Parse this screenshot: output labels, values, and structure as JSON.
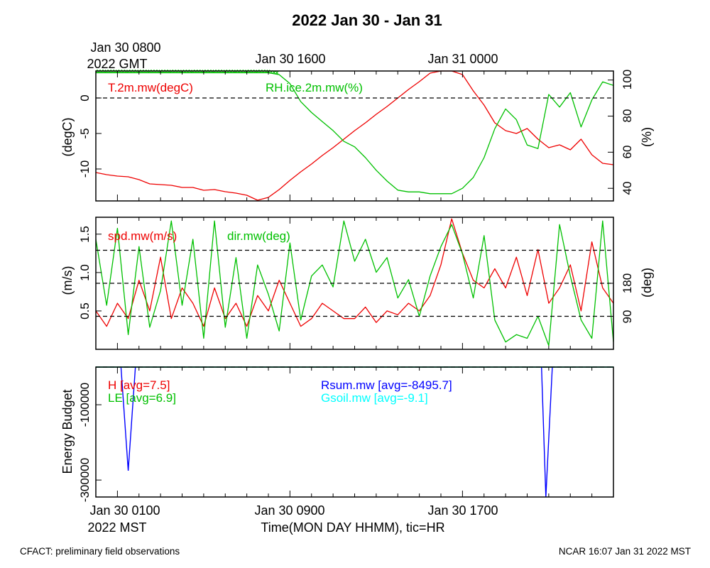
{
  "title": "2022 Jan 30 - Jan 31",
  "axes": {
    "top": [
      {
        "line1": "Jan 30 0800",
        "line2": "2022 GMT"
      },
      {
        "line1": "Jan 30 1600"
      },
      {
        "line1": "Jan 31 0000"
      }
    ],
    "bottom": [
      {
        "line1": "Jan 30 0100",
        "line2": "2022 MST"
      },
      {
        "line1": "Jan 30 0900"
      },
      {
        "line1": "Jan 30 1700"
      }
    ],
    "xlabel": "Time(MON DAY HHMM), tic=HR"
  },
  "footer": {
    "left": "CFACT: preliminary field observations",
    "right": "NCAR 16:07 Jan 31 2022 MST"
  },
  "colors": {
    "red": "#ee0000",
    "green": "#00c000",
    "blue": "#0000ff",
    "cyan": "#00ffff"
  },
  "chart_data": [
    {
      "type": "line",
      "xlim": [
        "Jan 30 0000",
        "Jan 31 0000"
      ],
      "x": [
        "Jan 30 0000",
        "Jan 30 0030",
        "Jan 30 0100",
        "Jan 30 0130",
        "Jan 30 0200",
        "Jan 30 0230",
        "Jan 30 0300",
        "Jan 30 0330",
        "Jan 30 0400",
        "Jan 30 0430",
        "Jan 30 0500",
        "Jan 30 0530",
        "Jan 30 0600",
        "Jan 30 0630",
        "Jan 30 0700",
        "Jan 30 0730",
        "Jan 30 0800",
        "Jan 30 0830",
        "Jan 30 0900",
        "Jan 30 0930",
        "Jan 30 1000",
        "Jan 30 1030",
        "Jan 30 1100",
        "Jan 30 1130",
        "Jan 30 1200",
        "Jan 30 1230",
        "Jan 30 1300",
        "Jan 30 1330",
        "Jan 30 1400",
        "Jan 30 1430",
        "Jan 30 1500",
        "Jan 30 1530",
        "Jan 30 1600",
        "Jan 30 1630",
        "Jan 30 1700",
        "Jan 30 1730",
        "Jan 30 1800",
        "Jan 30 1830",
        "Jan 30 1900",
        "Jan 30 1930",
        "Jan 30 2000",
        "Jan 30 2030",
        "Jan 30 2100",
        "Jan 30 2130",
        "Jan 30 2200",
        "Jan 30 2230",
        "Jan 30 2300",
        "Jan 30 2330",
        "Jan 31 0000"
      ],
      "ylabel": "(degC)",
      "ylabel_right": "(%)",
      "ylim": [
        -14.5,
        3.8
      ],
      "ylim_right": [
        33,
        105
      ],
      "yticks": [
        {
          "value": 0,
          "label": "0"
        },
        {
          "value": -5,
          "label": "-5"
        },
        {
          "value": -10,
          "label": "-10"
        }
      ],
      "yticks_right": [
        {
          "value": 100,
          "label": "100"
        },
        {
          "value": 80,
          "label": "80"
        },
        {
          "value": 60,
          "label": "60"
        },
        {
          "value": 40,
          "label": "40"
        }
      ],
      "reference_lines": [
        {
          "axis": "left",
          "value": 0
        }
      ],
      "series": [
        {
          "name": "T.2m.mw(degC)",
          "axis": "left",
          "color": "#ee0000",
          "values": [
            -10.5,
            -10.8,
            -11.0,
            -11.1,
            -11.5,
            -12.1,
            -12.2,
            -12.3,
            -12.6,
            -12.6,
            -13.0,
            -12.9,
            -13.2,
            -13.4,
            -13.7,
            -14.4,
            -14.0,
            -12.9,
            -11.6,
            -10.4,
            -9.3,
            -8.1,
            -7.0,
            -5.8,
            -4.6,
            -3.5,
            -2.3,
            -1.2,
            0.0,
            1.2,
            2.3,
            3.5,
            3.8,
            3.8,
            3.3,
            1.0,
            -1.0,
            -3.5,
            -4.6,
            -5.0,
            -4.3,
            -5.8,
            -7.0,
            -6.6,
            -7.3,
            -5.8,
            -8.0,
            -9.2,
            -9.4
          ]
        },
        {
          "name": "RH.ice.2m.mw(%)",
          "axis": "right",
          "color": "#00c000",
          "values": [
            104,
            104,
            104,
            104,
            104,
            104,
            104,
            104,
            104,
            104,
            104,
            104,
            104,
            104,
            104,
            104,
            104,
            103,
            98,
            88,
            82,
            77,
            72,
            66,
            63,
            57,
            50,
            44,
            39,
            38,
            38,
            37,
            37,
            37,
            40,
            46,
            57,
            73,
            84,
            78,
            64,
            62,
            92,
            85,
            93,
            74,
            89,
            99,
            97
          ]
        }
      ]
    },
    {
      "type": "line",
      "xlim": [
        "Jan 30 0000",
        "Jan 31 0000"
      ],
      "x": [
        "Jan 30 0000",
        "Jan 30 0030",
        "Jan 30 0100",
        "Jan 30 0130",
        "Jan 30 0200",
        "Jan 30 0230",
        "Jan 30 0300",
        "Jan 30 0330",
        "Jan 30 0400",
        "Jan 30 0430",
        "Jan 30 0500",
        "Jan 30 0530",
        "Jan 30 0600",
        "Jan 30 0630",
        "Jan 30 0700",
        "Jan 30 0730",
        "Jan 30 0800",
        "Jan 30 0830",
        "Jan 30 0900",
        "Jan 30 0930",
        "Jan 30 1000",
        "Jan 30 1030",
        "Jan 30 1100",
        "Jan 30 1130",
        "Jan 30 1200",
        "Jan 30 1230",
        "Jan 30 1300",
        "Jan 30 1330",
        "Jan 30 1400",
        "Jan 30 1430",
        "Jan 30 1500",
        "Jan 30 1530",
        "Jan 30 1600",
        "Jan 30 1630",
        "Jan 30 1700",
        "Jan 30 1730",
        "Jan 30 1800",
        "Jan 30 1830",
        "Jan 30 1900",
        "Jan 30 1930",
        "Jan 30 2000",
        "Jan 30 2030",
        "Jan 30 2100",
        "Jan 30 2130",
        "Jan 30 2200",
        "Jan 30 2230",
        "Jan 30 2300",
        "Jan 30 2330",
        "Jan 31 0000"
      ],
      "ylabel": "(m/s)",
      "ylabel_right": "(deg)",
      "ylim": [
        0,
        1.72
      ],
      "ylim_right": [
        0,
        360
      ],
      "yticks": [
        {
          "value": 1.5,
          "label": "1.5"
        },
        {
          "value": 1.0,
          "label": "1.0"
        },
        {
          "value": 0.5,
          "label": "0.5"
        }
      ],
      "yticks_right": [
        {
          "value": 180,
          "label": "180"
        },
        {
          "value": 90,
          "label": "90"
        }
      ],
      "reference_lines": [
        {
          "axis": "right",
          "value": 90
        },
        {
          "axis": "right",
          "value": 180
        },
        {
          "axis": "right",
          "value": 270
        }
      ],
      "series": [
        {
          "name": "spd.mw(m/s)",
          "axis": "left",
          "color": "#ee0000",
          "values": [
            0.5,
            0.3,
            0.6,
            0.4,
            0.9,
            0.5,
            1.2,
            0.4,
            0.8,
            0.6,
            0.3,
            0.8,
            0.4,
            0.6,
            0.3,
            0.7,
            0.5,
            0.9,
            0.6,
            0.3,
            0.4,
            0.6,
            0.5,
            0.4,
            0.4,
            0.55,
            0.35,
            0.5,
            0.45,
            0.6,
            0.5,
            0.7,
            1.1,
            1.7,
            1.25,
            0.9,
            0.8,
            1.05,
            0.8,
            1.2,
            0.7,
            1.3,
            0.6,
            0.8,
            1.1,
            0.5,
            1.4,
            0.8,
            0.6
          ]
        },
        {
          "name": "dir.mw(deg)",
          "axis": "right",
          "color": "#00c000",
          "values": [
            300,
            120,
            330,
            40,
            280,
            60,
            160,
            350,
            120,
            300,
            30,
            350,
            60,
            250,
            30,
            230,
            150,
            50,
            290,
            80,
            200,
            230,
            170,
            350,
            240,
            300,
            210,
            250,
            140,
            190,
            90,
            200,
            280,
            340,
            260,
            140,
            310,
            80,
            20,
            40,
            30,
            90,
            10,
            340,
            200,
            80,
            30,
            350,
            20
          ]
        }
      ]
    },
    {
      "type": "line",
      "xlim": [
        "Jan 30 0000",
        "Jan 31 0000"
      ],
      "ylabel": "Energy Budget",
      "ylim": [
        -345000,
        0
      ],
      "yticks": [
        {
          "value": -100000,
          "label": "-100000"
        },
        {
          "value": -300000,
          "label": "-300000"
        }
      ],
      "reference_lines": [
        {
          "axis": "left",
          "value": 0
        }
      ],
      "series": [
        {
          "name": "H",
          "legend": "H [avg=7.5]",
          "avg": 7.5,
          "color": "#ee0000"
        },
        {
          "name": "LE",
          "legend": "LE [avg=6.9]",
          "avg": 6.9,
          "color": "#00c000"
        },
        {
          "name": "Rsum.mw",
          "legend": "Rsum.mw [avg=-8495.7]",
          "avg": -8495.7,
          "color": "#0000ff",
          "points": [
            [
              {
                "x": "Jan 30 0110",
                "y": 0
              },
              {
                "x": "Jan 30 0130",
                "y": -275000
              },
              {
                "x": "Jan 30 0150",
                "y": 0
              }
            ],
            [
              {
                "x": "Jan 30 2040",
                "y": 0
              },
              {
                "x": "Jan 30 2052",
                "y": -345000
              },
              {
                "x": "Jan 30 2110",
                "y": 0
              }
            ]
          ]
        },
        {
          "name": "Gsoil.mw",
          "legend": "Gsoil.mw [avg=-9.1]",
          "avg": -9.1,
          "color": "#00ffff"
        }
      ]
    }
  ]
}
